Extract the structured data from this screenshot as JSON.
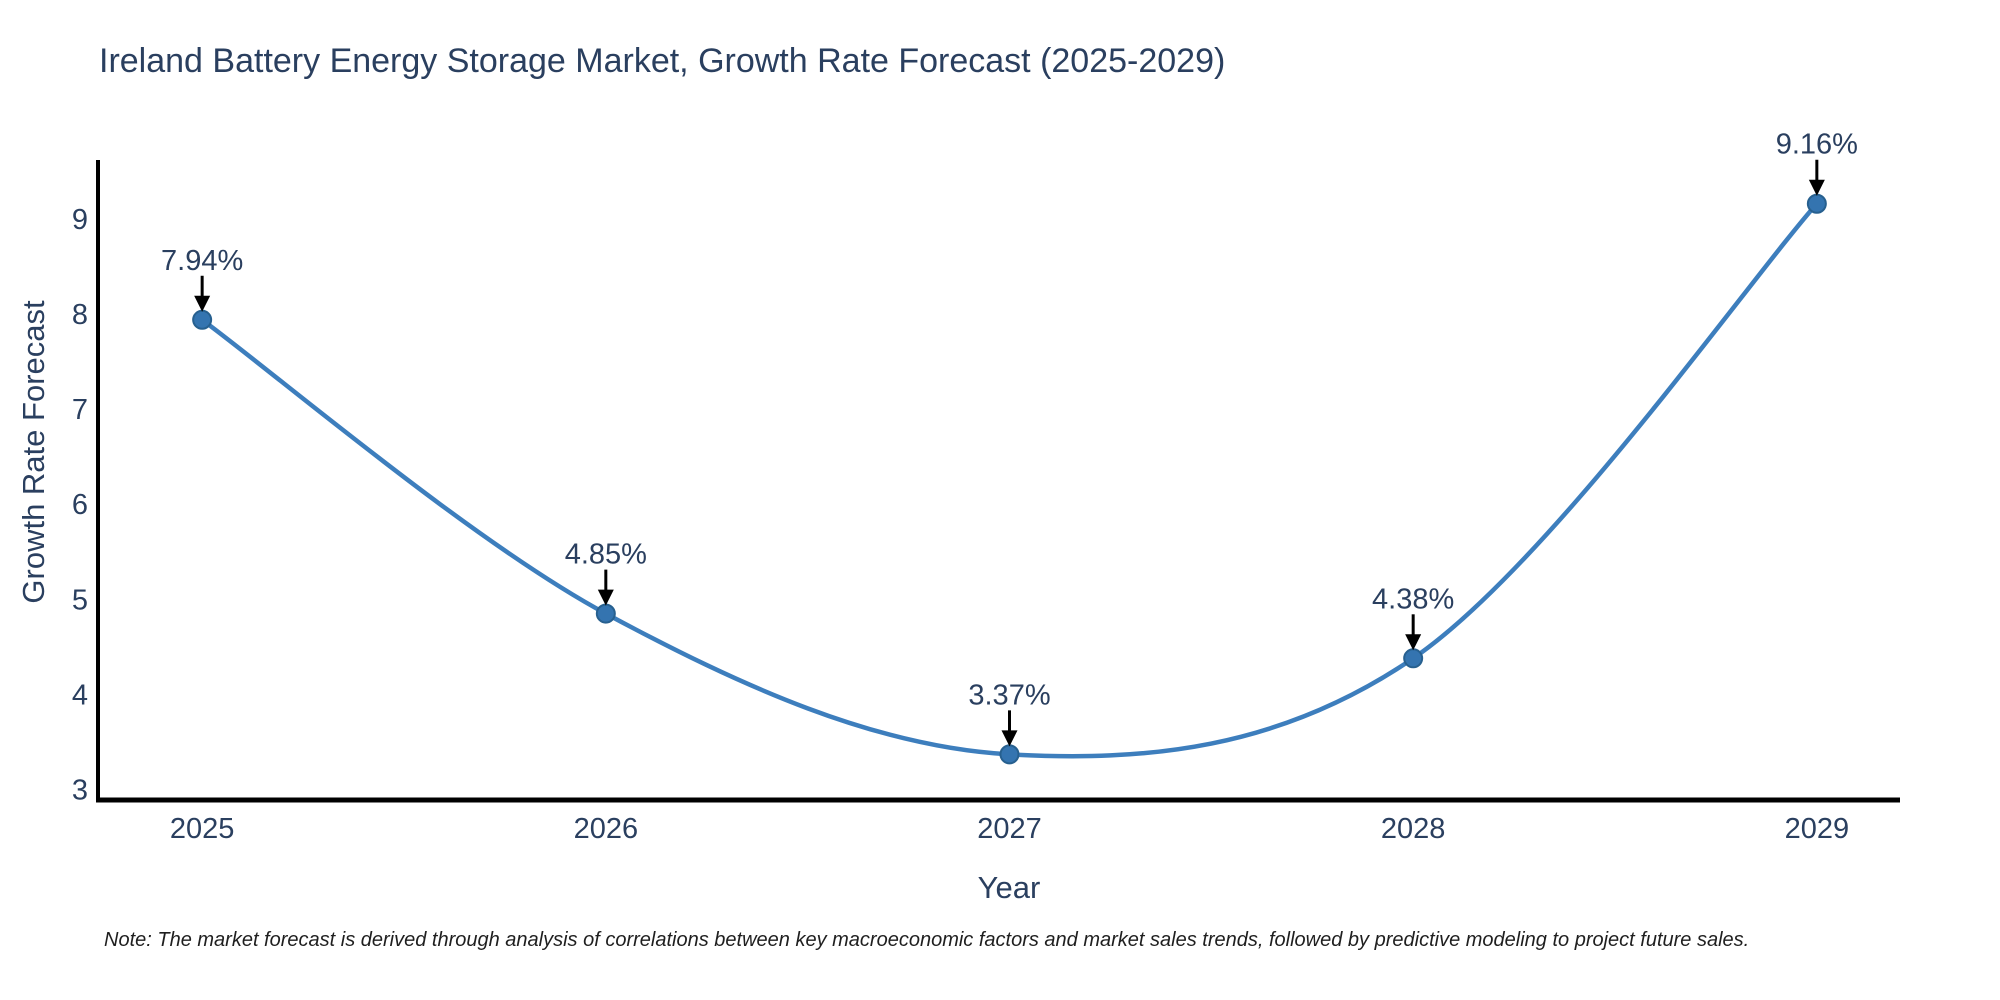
{
  "page": {
    "note": "Note: The market forecast is derived through analysis of correlations between key macroeconomic factors and market sales trends, followed by predictive modeling to project future sales."
  },
  "chart_data": {
    "type": "line",
    "title": "Ireland Battery Energy Storage Market, Growth Rate Forecast (2025-2029)",
    "xlabel": "Year",
    "ylabel": "Growth Rate Forecast",
    "x": [
      2025,
      2026,
      2027,
      2028,
      2029
    ],
    "y": [
      7.94,
      4.85,
      3.37,
      4.38,
      9.16
    ],
    "point_labels": [
      "7.94%",
      "4.85%",
      "3.37%",
      "4.38%",
      "9.16%"
    ],
    "xticks": [
      "2025",
      "2026",
      "2027",
      "2028",
      "2029"
    ],
    "yticks": [
      3,
      4,
      5,
      6,
      7,
      8,
      9
    ],
    "xlim": [
      2024.742,
      2029.206
    ],
    "ylim": [
      2.89,
      9.62
    ],
    "line_shape": "spline",
    "grid": false,
    "legend": "none",
    "colors": {
      "line": "#3d7ebd",
      "marker_fill": "#3474b0",
      "marker_edge": "#27608f",
      "axis": "#000000",
      "text": "#2a3f5f",
      "annotation_arrow": "#000000"
    }
  }
}
